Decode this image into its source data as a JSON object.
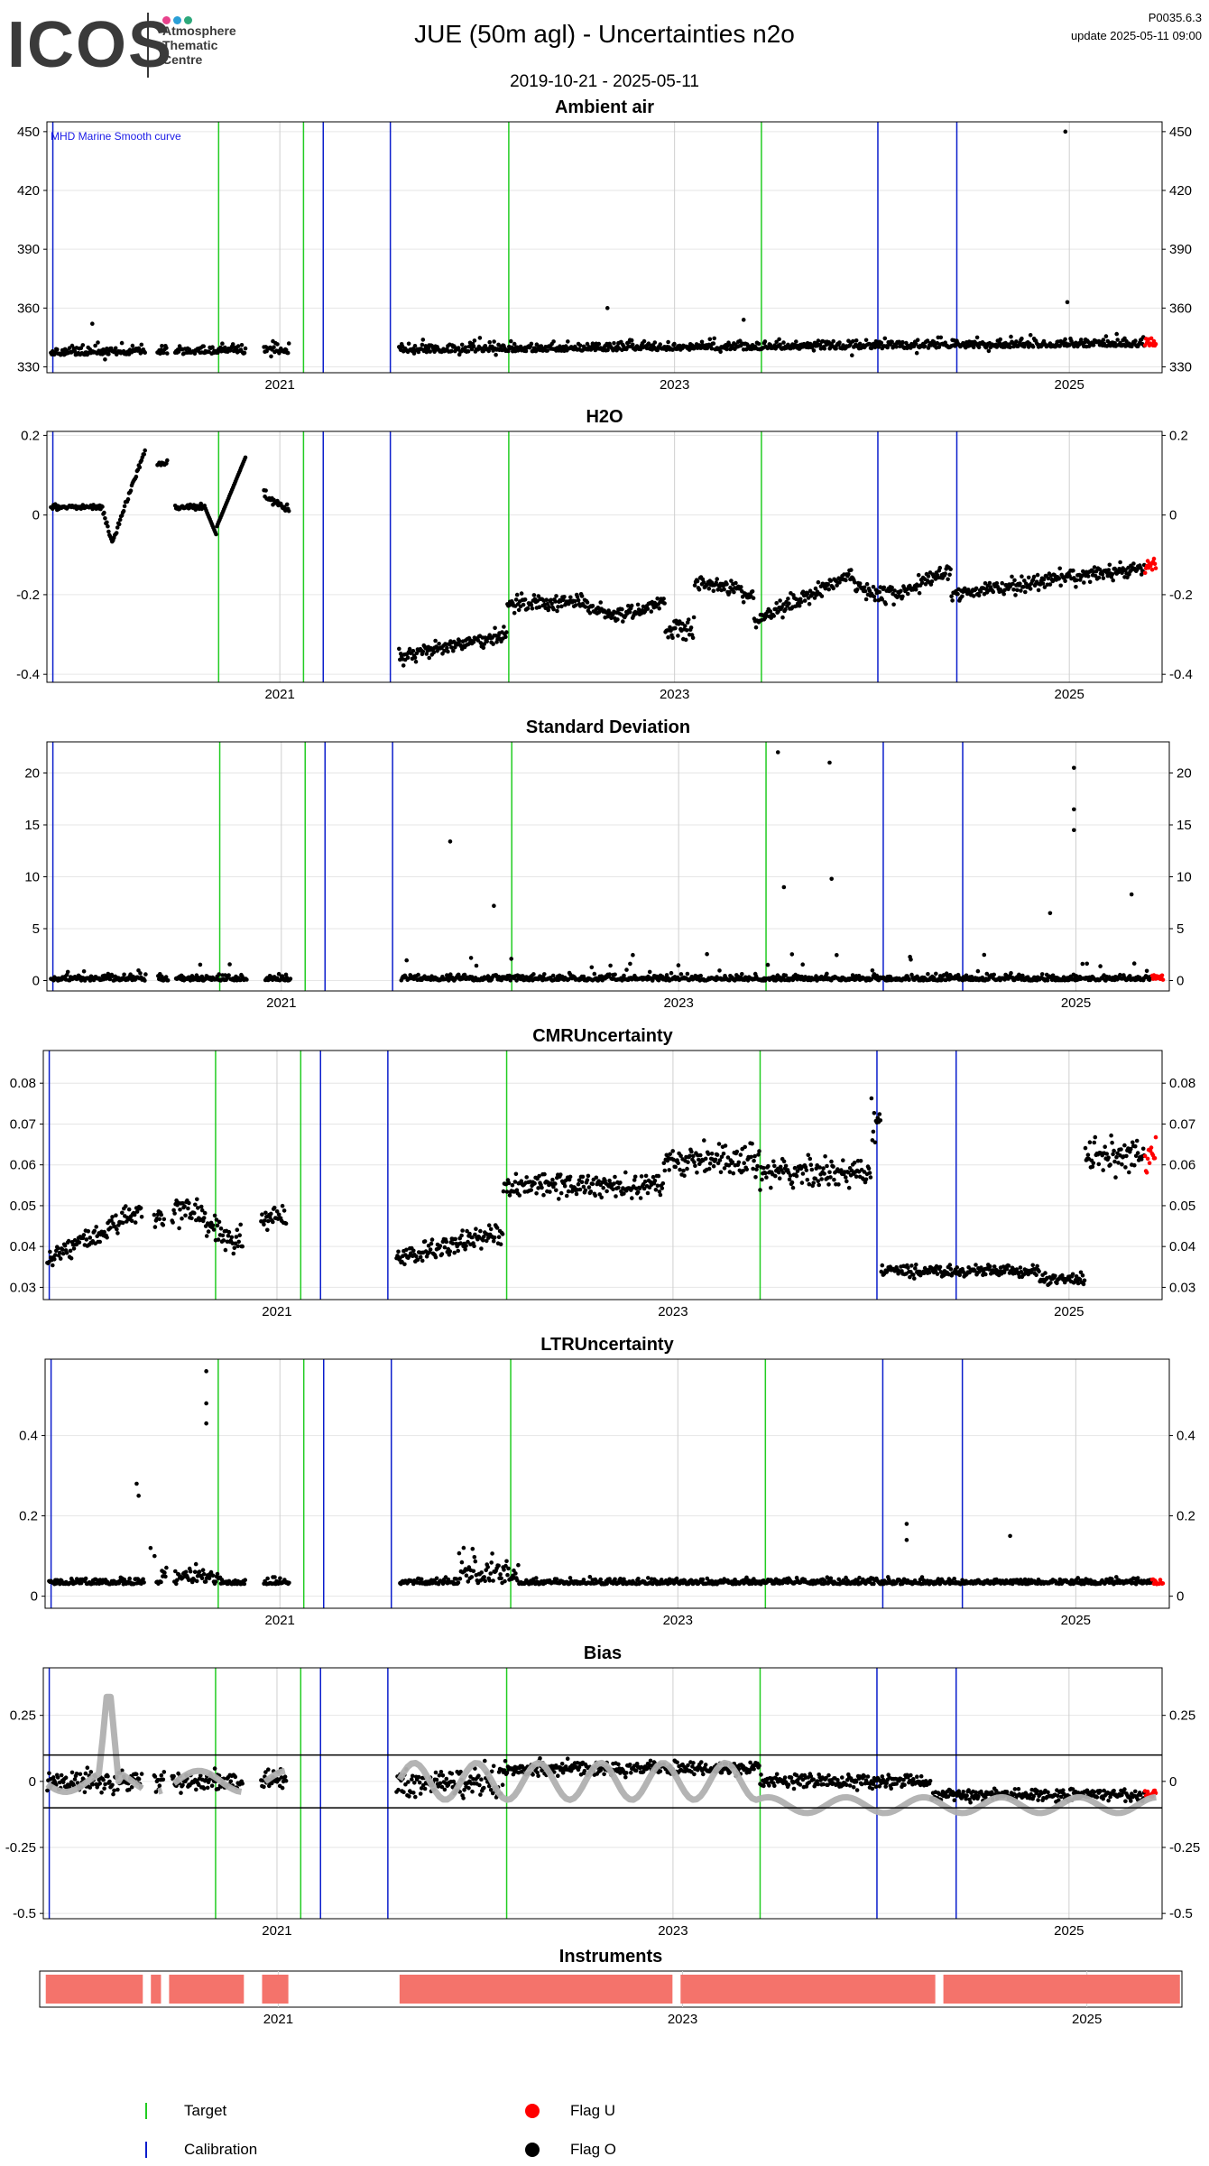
{
  "header": {
    "logo_text": "ICOS",
    "logo_sub": [
      "Atmosphere",
      "Thematic",
      "Centre"
    ],
    "logo_colors": [
      "#e8428c",
      "#2a9fd6",
      "#2ca87a"
    ],
    "title": "JUE  (50m agl) - Uncertainties n2o",
    "date_range": "2019-10-21 - 2025-05-11",
    "version": "P0035.6.3",
    "update": "update  2025-05-11 09:00"
  },
  "colors": {
    "points": "#000000",
    "target_line": "#22cc22",
    "calibration_line": "#0b1ecc",
    "flag_u": "#ff0000",
    "flag_o": "#000000",
    "smooth": "#b0b0b0",
    "instrument_bar": "#f4736b",
    "frame": "#000000",
    "grid": "#e6e6e6"
  },
  "chart_data": [
    {
      "title": "Ambient air",
      "type": "scatter",
      "annotation": "MHD Marine Smooth curve",
      "y_ticks": [
        330,
        360,
        390,
        420,
        450
      ],
      "ylim": [
        327,
        455
      ],
      "baseline": 337,
      "noise": 3,
      "trend": 3,
      "x_ticks": [
        2021,
        2023,
        2025
      ],
      "outliers": [
        [
          2024.98,
          450
        ],
        [
          2024.99,
          363
        ],
        [
          2022.66,
          360
        ],
        [
          2023.35,
          354
        ],
        [
          2020.05,
          352
        ]
      ]
    },
    {
      "title": "H2O",
      "type": "scatter",
      "y_ticks": [
        -0.4,
        -0.2,
        0.0,
        0.2
      ],
      "ylim": [
        -0.42,
        0.21
      ],
      "x_ticks": [
        2021,
        2023,
        2025
      ]
    },
    {
      "title": "Standard Deviation",
      "type": "scatter",
      "y_ticks": [
        0,
        5,
        10,
        15,
        20
      ],
      "ylim": [
        -1,
        23
      ],
      "baseline": 0.3,
      "noise": 0.8,
      "x_ticks": [
        2021,
        2023,
        2025
      ],
      "outliers": [
        [
          2021.85,
          13.4
        ],
        [
          2023.5,
          22
        ],
        [
          2023.76,
          21
        ],
        [
          2024.99,
          20.5
        ],
        [
          2024.99,
          16.5
        ],
        [
          2024.99,
          14.5
        ],
        [
          2023.77,
          9.8
        ],
        [
          2023.53,
          9
        ],
        [
          2022.07,
          7.2
        ],
        [
          2025.28,
          8.3
        ],
        [
          2024.87,
          6.5
        ]
      ]
    },
    {
      "title": "CMRUncertainty",
      "type": "scatter",
      "y_ticks": [
        0.03,
        0.04,
        0.05,
        0.06,
        0.07,
        0.08
      ],
      "ylim": [
        0.027,
        0.088
      ],
      "x_ticks": [
        2021,
        2023,
        2025
      ]
    },
    {
      "title": "LTRUncertainty",
      "type": "scatter",
      "y_ticks": [
        0.0,
        0.2,
        0.4
      ],
      "ylim": [
        -0.03,
        0.59
      ],
      "baseline": 0.03,
      "noise": 0.02,
      "x_ticks": [
        2021,
        2023,
        2025
      ],
      "outliers": [
        [
          2020.63,
          0.56
        ],
        [
          2020.63,
          0.48
        ],
        [
          2020.63,
          0.43
        ],
        [
          2020.28,
          0.28
        ],
        [
          2020.29,
          0.25
        ],
        [
          2024.15,
          0.18
        ],
        [
          2024.15,
          0.14
        ],
        [
          2024.67,
          0.15
        ],
        [
          2020.35,
          0.12
        ],
        [
          2020.37,
          0.1
        ]
      ]
    },
    {
      "title": "Bias",
      "type": "scatter",
      "y_ticks": [
        -0.5,
        -0.25,
        0.0,
        0.25
      ],
      "ylim": [
        -0.52,
        0.43
      ],
      "hlines": [
        0.1,
        -0.1
      ],
      "x_ticks": [
        2021,
        2023,
        2025
      ]
    },
    {
      "title": "Instruments",
      "type": "bar",
      "instrument_id": "857",
      "x_ticks": [
        2021,
        2023,
        2025
      ],
      "segments": [
        [
          2019.85,
          2020.33
        ],
        [
          2020.37,
          2020.42
        ],
        [
          2020.46,
          2020.83
        ],
        [
          2020.92,
          2021.05
        ],
        [
          2021.6,
          2022.95
        ],
        [
          2022.99,
          2024.25
        ],
        [
          2024.29,
          2025.46
        ]
      ]
    }
  ],
  "x_axis": {
    "range": [
      2019.82,
      2025.47
    ],
    "target_lines": [
      2020.69,
      2021.12,
      2022.16,
      2023.44
    ],
    "calibration_lines": [
      2019.85,
      2021.22,
      2021.56,
      2024.03,
      2024.43
    ]
  },
  "legend": {
    "target": "Target",
    "calibration": "Calibration",
    "flag_u": "Flag U",
    "flag_o": "Flag O"
  }
}
